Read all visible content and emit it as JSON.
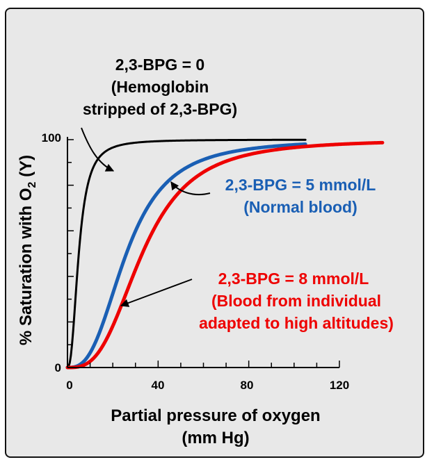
{
  "chart_data": {
    "type": "line",
    "xlabel_line1": "Partial pressure of oxygen",
    "xlabel_line2": "(mm Hg)",
    "ylabel_main": "% Saturation with O",
    "ylabel_sub": "2",
    "ylabel_tail": " (Y)",
    "xlim": [
      0,
      120
    ],
    "ylim": [
      0,
      100
    ],
    "x_ticks": [
      0,
      40,
      80,
      120
    ],
    "x_tick_labels": [
      "0",
      "40",
      "80",
      "120"
    ],
    "y_tick_labels": [
      {
        "value": 0,
        "label": "0"
      },
      {
        "value": 100,
        "label": "100"
      }
    ],
    "series": [
      {
        "key": "bpg0",
        "color": "#000000",
        "stroke_width": 3,
        "p50": 5,
        "hill_n": 2.4,
        "x_max": 105,
        "label_lines": [
          "2,3-BPG = 0",
          "(Hemoglobin",
          "stripped of 2,3-BPG)"
        ]
      },
      {
        "key": "bpg5",
        "color": "#1a5fb4",
        "stroke_width": 5,
        "p50": 26,
        "hill_n": 2.8,
        "x_max": 105,
        "label_lines": [
          "2,3-BPG = 5 mmol/L",
          "(Normal blood)"
        ]
      },
      {
        "key": "bpg8",
        "color": "#ee0000",
        "stroke_width": 5,
        "p50": 33,
        "hill_n": 3.0,
        "x_max": 139,
        "label_lines": [
          "2,3-BPG = 8 mmol/L",
          "(Blood from individual",
          "adapted to high altitudes)"
        ]
      }
    ]
  }
}
